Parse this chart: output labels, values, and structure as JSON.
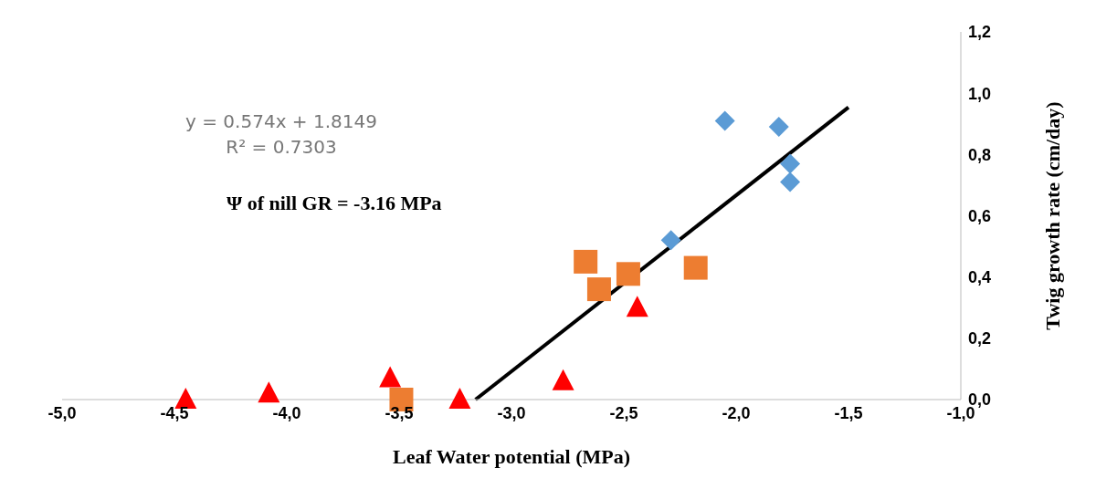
{
  "chart_data": {
    "type": "scatter",
    "xlabel": "Leaf  Water potential (MPa)",
    "ylabel": "Twig growth rate (cm/day)",
    "annotations": [
      "y = 0.574x + 1.8149",
      "R² = 0.7303",
      "Ψ of nill GR = -3.16 MPa"
    ],
    "xlim": [
      -5,
      -1
    ],
    "ylim": [
      0,
      1.2
    ],
    "xticks": [
      {
        "value": -5,
        "label": "-5,0"
      },
      {
        "value": -4.5,
        "label": "-4,5"
      },
      {
        "value": -4,
        "label": "-4,0"
      },
      {
        "value": -3.5,
        "label": "-3,5"
      },
      {
        "value": -3,
        "label": "-3,0"
      },
      {
        "value": -2.5,
        "label": "-2,5"
      },
      {
        "value": -2,
        "label": "-2,0"
      },
      {
        "value": -1.5,
        "label": "-1,5"
      },
      {
        "value": -1,
        "label": "-1,0"
      }
    ],
    "yticks": [
      {
        "value": 0,
        "label": "0,0"
      },
      {
        "value": 0.2,
        "label": "0,2"
      },
      {
        "value": 0.4,
        "label": "0,4"
      },
      {
        "value": 0.6,
        "label": "0,6"
      },
      {
        "value": 0.8,
        "label": "0,8"
      },
      {
        "value": 1,
        "label": "1,0"
      },
      {
        "value": 1.2,
        "label": "1,2"
      }
    ],
    "grid": false,
    "legend": false,
    "series": [
      {
        "marker": "diamond",
        "color": "#5b9bd5",
        "x": [
          -2.05,
          -1.81,
          -1.76,
          -1.76,
          -2.29
        ],
        "values": [
          0.91,
          0.89,
          0.77,
          0.71,
          0.52
        ]
      },
      {
        "marker": "square",
        "color": "#ed7d31",
        "x": [
          -2.67,
          -2.61,
          -2.48,
          -2.18,
          -3.49
        ],
        "values": [
          0.45,
          0.36,
          0.41,
          0.43,
          0.0
        ]
      },
      {
        "marker": "triangle",
        "color": "#ff0000",
        "x": [
          -4.45,
          -4.08,
          -3.54,
          -3.23,
          -2.77,
          -2.44
        ],
        "values": [
          0.0,
          0.02,
          0.07,
          0.0,
          0.06,
          0.3
        ]
      },
      {
        "type": "line",
        "marker": "none",
        "color": "#000000",
        "x": [
          -3.16,
          -1.5
        ],
        "values": [
          0.0,
          0.954
        ]
      }
    ]
  }
}
